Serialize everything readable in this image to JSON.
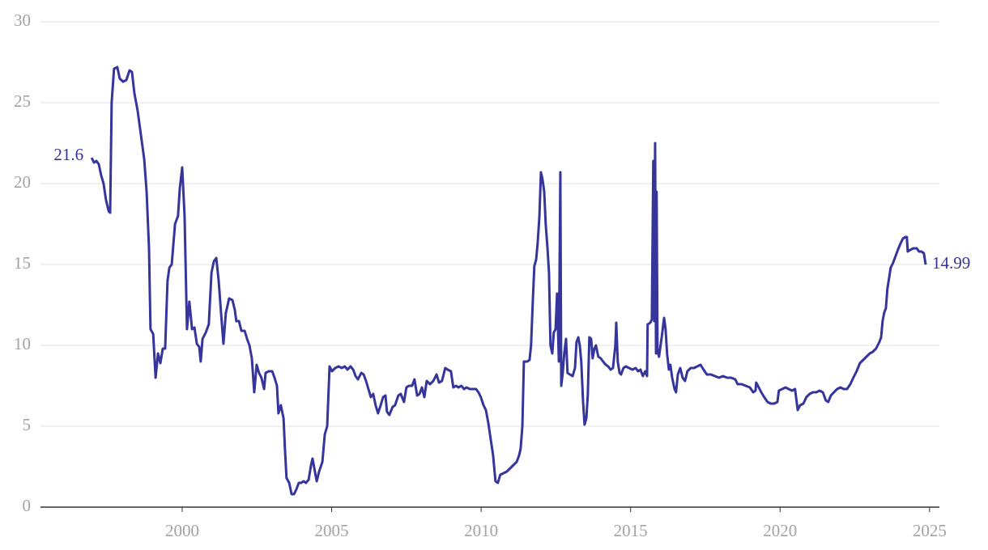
{
  "chart_data": {
    "type": "line",
    "color": "#35359b",
    "grid": true,
    "xlim": [
      1995.26,
      2025.33
    ],
    "xticks": [
      2000,
      2005,
      2010,
      2015,
      2020,
      2025
    ],
    "ylim": [
      0,
      30
    ],
    "yticks": [
      0,
      5,
      10,
      15,
      20,
      25,
      30
    ],
    "x": [
      1996.97,
      1997.05,
      1997.13,
      1997.21,
      1997.29,
      1997.37,
      1997.45,
      1997.54,
      1997.59,
      1997.64,
      1997.72,
      1997.83,
      1997.91,
      1998.02,
      1998.13,
      1998.24,
      1998.32,
      1998.4,
      1998.51,
      1998.62,
      1998.73,
      1998.81,
      1998.89,
      1998.94,
      1999.03,
      1999.11,
      1999.19,
      1999.27,
      1999.35,
      1999.43,
      1999.51,
      1999.57,
      1999.65,
      1999.76,
      1999.86,
      1999.92,
      2000.0,
      2000.08,
      2000.16,
      2000.24,
      2000.33,
      2000.41,
      2000.49,
      2000.57,
      2000.62,
      2000.68,
      2000.79,
      2000.89,
      2000.98,
      2001.06,
      2001.14,
      2001.22,
      2001.3,
      2001.38,
      2001.46,
      2001.57,
      2001.68,
      2001.76,
      2001.81,
      2001.9,
      2001.98,
      2002.09,
      2002.17,
      2002.25,
      2002.33,
      2002.41,
      2002.49,
      2002.57,
      2002.65,
      2002.74,
      2002.79,
      2002.9,
      2003.01,
      2003.09,
      2003.17,
      2003.22,
      2003.3,
      2003.39,
      2003.44,
      2003.49,
      2003.58,
      2003.66,
      2003.74,
      2003.82,
      2003.9,
      2003.98,
      2004.06,
      2004.14,
      2004.23,
      2004.31,
      2004.36,
      2004.42,
      2004.5,
      2004.58,
      2004.69,
      2004.77,
      2004.85,
      2004.93,
      2005.01,
      2005.12,
      2005.23,
      2005.34,
      2005.44,
      2005.53,
      2005.63,
      2005.72,
      2005.8,
      2005.88,
      2005.99,
      2006.07,
      2006.15,
      2006.23,
      2006.31,
      2006.39,
      2006.47,
      2006.55,
      2006.64,
      2006.72,
      2006.8,
      2006.85,
      2006.93,
      2007.04,
      2007.12,
      2007.23,
      2007.31,
      2007.42,
      2007.5,
      2007.58,
      2007.69,
      2007.77,
      2007.86,
      2007.94,
      2008.02,
      2008.1,
      2008.18,
      2008.29,
      2008.4,
      2008.51,
      2008.59,
      2008.69,
      2008.8,
      2008.88,
      2008.99,
      2009.07,
      2009.16,
      2009.24,
      2009.34,
      2009.43,
      2009.51,
      2009.62,
      2009.72,
      2009.83,
      2009.91,
      2009.99,
      2010.08,
      2010.16,
      2010.24,
      2010.32,
      2010.4,
      2010.48,
      2010.56,
      2010.64,
      2010.75,
      2010.86,
      2010.97,
      2011.08,
      2011.19,
      2011.27,
      2011.32,
      2011.38,
      2011.43,
      2011.54,
      2011.62,
      2011.67,
      2011.73,
      2011.78,
      2011.84,
      2011.89,
      2011.95,
      2012.0,
      2012.05,
      2012.11,
      2012.16,
      2012.22,
      2012.27,
      2012.32,
      2012.38,
      2012.43,
      2012.49,
      2012.54,
      2012.6,
      2012.65,
      2012.68,
      2012.73,
      2012.78,
      2012.84,
      2012.89,
      2012.97,
      2013.06,
      2013.14,
      2013.19,
      2013.25,
      2013.3,
      2013.35,
      2013.41,
      2013.46,
      2013.52,
      2013.57,
      2013.62,
      2013.68,
      2013.73,
      2013.79,
      2013.84,
      2013.92,
      2014.0,
      2014.08,
      2014.17,
      2014.25,
      2014.33,
      2014.41,
      2014.49,
      2014.52,
      2014.57,
      2014.63,
      2014.68,
      2014.76,
      2014.84,
      2014.95,
      2015.06,
      2015.17,
      2015.25,
      2015.33,
      2015.41,
      2015.49,
      2015.55,
      2015.57,
      2015.66,
      2015.71,
      2015.76,
      2015.79,
      2015.82,
      2015.85,
      2015.87,
      2015.9,
      2015.95,
      2016.04,
      2016.12,
      2016.17,
      2016.22,
      2016.28,
      2016.33,
      2016.39,
      2016.47,
      2016.52,
      2016.58,
      2016.66,
      2016.74,
      2016.82,
      2016.9,
      2017.01,
      2017.12,
      2017.23,
      2017.34,
      2017.44,
      2017.55,
      2017.69,
      2017.82,
      2017.96,
      2018.09,
      2018.23,
      2018.36,
      2018.5,
      2018.58,
      2018.72,
      2018.85,
      2018.99,
      2019.1,
      2019.18,
      2019.2,
      2019.26,
      2019.37,
      2019.47,
      2019.58,
      2019.69,
      2019.8,
      2019.91,
      2019.96,
      2020.07,
      2020.18,
      2020.29,
      2020.4,
      2020.5,
      2020.59,
      2020.67,
      2020.78,
      2020.88,
      2020.99,
      2021.1,
      2021.21,
      2021.32,
      2021.43,
      2021.53,
      2021.61,
      2021.7,
      2021.8,
      2021.91,
      2022.02,
      2022.13,
      2022.24,
      2022.35,
      2022.45,
      2022.56,
      2022.67,
      2022.78,
      2022.89,
      2023.0,
      2023.1,
      2023.21,
      2023.32,
      2023.38,
      2023.43,
      2023.48,
      2023.54,
      2023.59,
      2023.65,
      2023.7,
      2023.78,
      2023.86,
      2023.94,
      2024.03,
      2024.11,
      2024.19,
      2024.24,
      2024.27,
      2024.35,
      2024.46,
      2024.57,
      2024.65,
      2024.73,
      2024.81,
      2024.87
    ],
    "values": [
      21.6,
      21.3,
      21.4,
      21.2,
      20.5,
      20.0,
      19.0,
      18.3,
      18.2,
      25.0,
      27.1,
      27.2,
      26.5,
      26.3,
      26.4,
      27.0,
      26.9,
      25.6,
      24.5,
      23.0,
      21.5,
      19.5,
      16.0,
      11.0,
      10.7,
      8.0,
      9.5,
      8.9,
      9.8,
      9.8,
      14.0,
      14.8,
      15.0,
      17.5,
      18.0,
      19.7,
      21.0,
      18.0,
      11.0,
      12.7,
      11.0,
      11.1,
      10.1,
      9.9,
      9.0,
      10.4,
      10.8,
      11.3,
      14.5,
      15.2,
      15.4,
      14.0,
      12.0,
      10.1,
      12.0,
      12.9,
      12.8,
      12.2,
      11.5,
      11.5,
      10.9,
      10.9,
      10.4,
      10.0,
      9.2,
      7.1,
      8.8,
      8.3,
      8.0,
      7.3,
      8.3,
      8.4,
      8.4,
      8.0,
      7.5,
      5.8,
      6.3,
      5.5,
      3.5,
      1.8,
      1.5,
      0.8,
      0.8,
      1.1,
      1.5,
      1.5,
      1.6,
      1.5,
      1.7,
      2.6,
      3.0,
      2.4,
      1.6,
      2.2,
      2.8,
      4.5,
      5.0,
      8.7,
      8.4,
      8.6,
      8.7,
      8.6,
      8.7,
      8.5,
      8.7,
      8.5,
      8.1,
      7.9,
      8.3,
      8.2,
      7.8,
      7.3,
      6.8,
      7.0,
      6.3,
      5.8,
      6.3,
      6.8,
      6.9,
      5.9,
      5.7,
      6.2,
      6.3,
      6.9,
      7.0,
      6.5,
      7.4,
      7.5,
      7.5,
      7.9,
      6.9,
      7.0,
      7.4,
      6.8,
      7.8,
      7.6,
      7.8,
      8.2,
      7.7,
      7.8,
      8.6,
      8.5,
      8.4,
      7.4,
      7.5,
      7.4,
      7.5,
      7.3,
      7.4,
      7.3,
      7.3,
      7.3,
      7.1,
      6.8,
      6.3,
      6.0,
      5.2,
      4.2,
      3.2,
      1.6,
      1.5,
      2.0,
      2.1,
      2.2,
      2.4,
      2.6,
      2.8,
      3.2,
      3.6,
      5.0,
      9.0,
      9.0,
      9.1,
      10.0,
      12.8,
      14.9,
      15.3,
      16.3,
      18.0,
      20.7,
      20.3,
      19.5,
      17.5,
      16.0,
      14.5,
      10.0,
      9.5,
      10.8,
      11.0,
      13.2,
      9.0,
      20.7,
      7.5,
      8.3,
      9.5,
      10.4,
      8.3,
      8.2,
      8.1,
      8.6,
      10.2,
      10.5,
      10.0,
      9.0,
      6.5,
      5.1,
      5.5,
      7.0,
      10.5,
      10.4,
      9.2,
      9.8,
      10.0,
      9.3,
      9.2,
      9.0,
      8.8,
      8.7,
      8.5,
      8.6,
      10.0,
      11.4,
      9.0,
      8.3,
      8.2,
      8.6,
      8.7,
      8.6,
      8.5,
      8.6,
      8.4,
      8.5,
      8.1,
      8.4,
      8.1,
      11.3,
      11.4,
      11.6,
      21.4,
      11.5,
      22.5,
      9.5,
      19.5,
      9.7,
      9.3,
      10.5,
      11.7,
      11.0,
      9.5,
      8.5,
      8.8,
      8.0,
      7.3,
      7.1,
      8.2,
      8.6,
      8.0,
      7.8,
      8.4,
      8.6,
      8.6,
      8.7,
      8.8,
      8.5,
      8.2,
      8.2,
      8.1,
      8.0,
      8.1,
      8.0,
      8.0,
      7.9,
      7.6,
      7.6,
      7.5,
      7.4,
      7.1,
      7.2,
      7.7,
      7.5,
      7.1,
      6.8,
      6.5,
      6.4,
      6.4,
      6.5,
      7.2,
      7.3,
      7.4,
      7.3,
      7.2,
      7.3,
      6.0,
      6.3,
      6.4,
      6.8,
      7.0,
      7.1,
      7.1,
      7.2,
      7.1,
      6.6,
      6.5,
      6.9,
      7.1,
      7.3,
      7.4,
      7.3,
      7.3,
      7.6,
      8.0,
      8.4,
      8.9,
      9.1,
      9.3,
      9.5,
      9.6,
      9.8,
      10.2,
      10.5,
      11.5,
      12.0,
      12.3,
      13.5,
      14.2,
      14.8,
      15.1,
      15.5,
      15.9,
      16.3,
      16.6,
      16.7,
      16.7,
      15.8,
      15.9,
      16.0,
      16.0,
      15.8,
      15.8,
      15.7,
      14.99
    ]
  }
}
